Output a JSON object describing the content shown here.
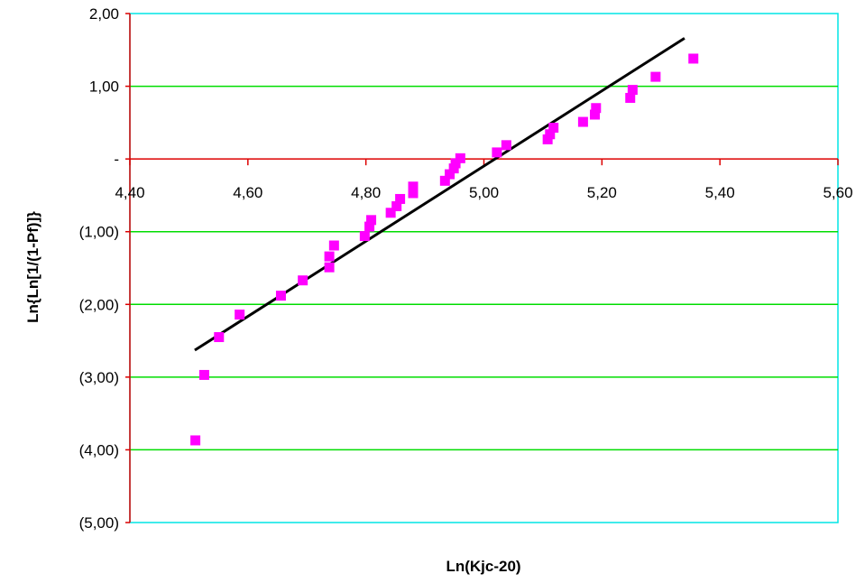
{
  "chart_data": {
    "type": "scatter",
    "xlabel": "Ln(Kjc-20)",
    "ylabel": "Ln{Ln[1/(1-Pf)]}",
    "xlim": [
      4.4,
      5.6
    ],
    "ylim": [
      -5.0,
      2.0
    ],
    "x_ticks": [
      4.4,
      4.6,
      4.8,
      5.0,
      5.2,
      5.4,
      5.6
    ],
    "x_tick_labels": [
      "4,40",
      "4,60",
      "4,80",
      "5,00",
      "5,20",
      "5,40",
      "5,60"
    ],
    "y_ticks": [
      2.0,
      1.0,
      0.0,
      -1.0,
      -2.0,
      -3.0,
      -4.0,
      -5.0
    ],
    "y_tick_labels": [
      "2,00",
      "1,00",
      "-",
      "(1,00)",
      "(2,00)",
      "(3,00)",
      "(4,00)",
      "(5,00)"
    ],
    "grid": "horizontal",
    "colors": {
      "points": "#ff00ff",
      "trendline": "#000000",
      "gridlines": "#00dd00",
      "axes": "#dd0000",
      "frame": "#00e5e5"
    },
    "points": [
      {
        "x": 4.511,
        "y": -3.87
      },
      {
        "x": 4.526,
        "y": -2.97
      },
      {
        "x": 4.551,
        "y": -2.45
      },
      {
        "x": 4.586,
        "y": -2.14
      },
      {
        "x": 4.656,
        "y": -1.88
      },
      {
        "x": 4.693,
        "y": -1.67
      },
      {
        "x": 4.738,
        "y": -1.49
      },
      {
        "x": 4.738,
        "y": -1.34
      },
      {
        "x": 4.746,
        "y": -1.19
      },
      {
        "x": 4.798,
        "y": -1.06
      },
      {
        "x": 4.806,
        "y": -0.93
      },
      {
        "x": 4.809,
        "y": -0.84
      },
      {
        "x": 4.842,
        "y": -0.74
      },
      {
        "x": 4.852,
        "y": -0.65
      },
      {
        "x": 4.858,
        "y": -0.55
      },
      {
        "x": 4.88,
        "y": -0.47
      },
      {
        "x": 4.88,
        "y": -0.38
      },
      {
        "x": 4.934,
        "y": -0.3
      },
      {
        "x": 4.942,
        "y": -0.21
      },
      {
        "x": 4.949,
        "y": -0.13
      },
      {
        "x": 4.952,
        "y": -0.06
      },
      {
        "x": 4.96,
        "y": 0.01
      },
      {
        "x": 5.022,
        "y": 0.09
      },
      {
        "x": 5.038,
        "y": 0.19
      },
      {
        "x": 5.108,
        "y": 0.27
      },
      {
        "x": 5.112,
        "y": 0.34
      },
      {
        "x": 5.118,
        "y": 0.43
      },
      {
        "x": 5.168,
        "y": 0.51
      },
      {
        "x": 5.188,
        "y": 0.61
      },
      {
        "x": 5.19,
        "y": 0.7
      },
      {
        "x": 5.248,
        "y": 0.84
      },
      {
        "x": 5.252,
        "y": 0.95
      },
      {
        "x": 5.291,
        "y": 1.13
      },
      {
        "x": 5.355,
        "y": 1.38
      }
    ],
    "trendline": {
      "x": [
        4.51,
        5.34
      ],
      "y": [
        -2.63,
        1.66
      ]
    }
  }
}
